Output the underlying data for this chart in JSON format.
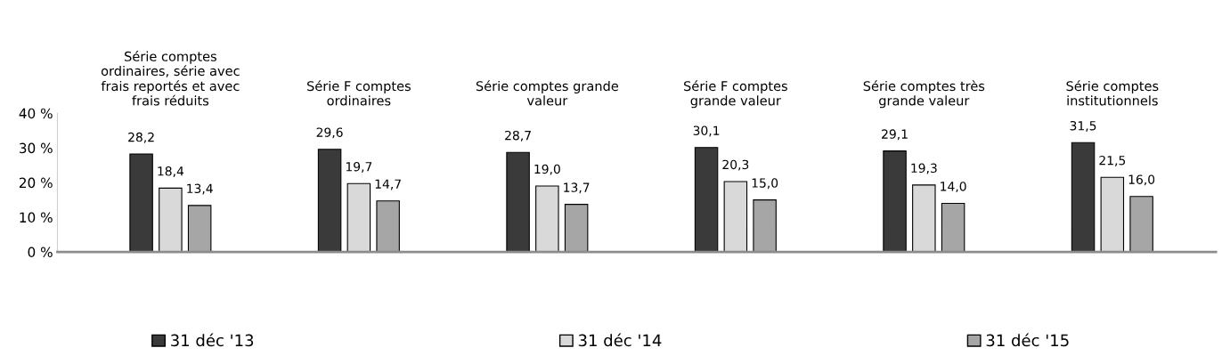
{
  "chart_data": {
    "type": "bar",
    "categories": [
      "Série comptes ordinaires, série avec frais reportés et avec frais réduits",
      "Série F comptes ordinaires",
      "Série comptes grande valeur",
      "Série F comptes grande valeur",
      "Série comptes très grande valeur",
      "Série comptes institutionnels"
    ],
    "series": [
      {
        "name": "31 déc '13",
        "color": "#3a3a3a",
        "values": [
          28.2,
          29.6,
          28.7,
          30.1,
          29.1,
          31.5
        ],
        "value_labels": [
          "28,2",
          "29,6",
          "28,7",
          "30,1",
          "29,1",
          "31,5"
        ]
      },
      {
        "name": "31 déc '14",
        "color": "#d9d9d9",
        "values": [
          18.4,
          19.7,
          19.0,
          20.3,
          19.3,
          21.5
        ],
        "value_labels": [
          "18,4",
          "19,7",
          "19,0",
          "20,3",
          "19,3",
          "21,5"
        ]
      },
      {
        "name": "31 déc '15",
        "color": "#a6a6a6",
        "values": [
          13.4,
          14.7,
          13.7,
          15.0,
          14.0,
          16.0
        ],
        "value_labels": [
          "13,4",
          "14,7",
          "13,7",
          "15,0",
          "14,0",
          "16,0"
        ]
      }
    ],
    "ylim": [
      0,
      40
    ],
    "yticks": [
      {
        "value": 0,
        "label": "0 %"
      },
      {
        "value": 10,
        "label": "10 %"
      },
      {
        "value": 20,
        "label": "20 %"
      },
      {
        "value": 30,
        "label": "30 %"
      },
      {
        "value": 40,
        "label": "40 %"
      }
    ],
    "grid": false,
    "legend": "bottom"
  }
}
